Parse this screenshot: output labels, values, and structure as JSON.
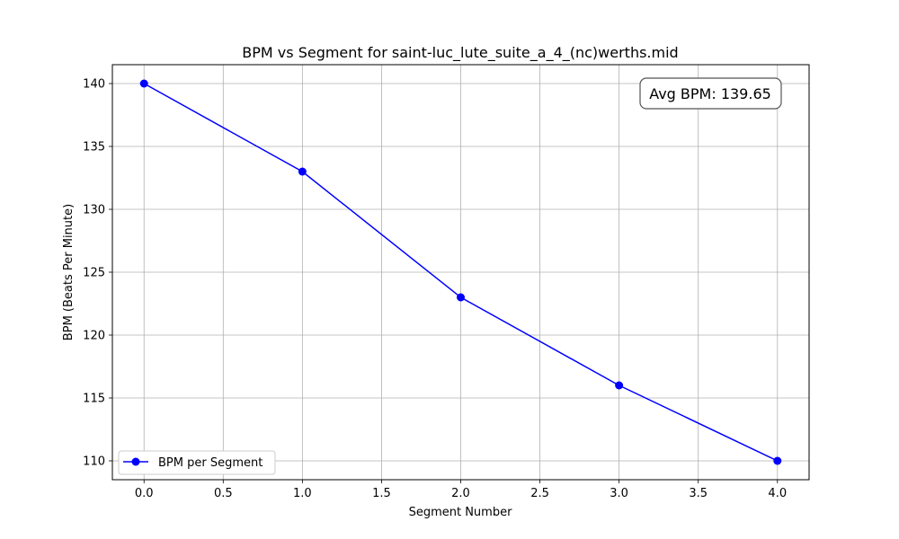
{
  "chart_data": {
    "type": "line",
    "title": "BPM vs Segment for saint-luc_lute_suite_a_4_(nc)werths.mid",
    "xlabel": "Segment Number",
    "ylabel": "BPM (Beats Per Minute)",
    "x": [
      0,
      1,
      2,
      3,
      4
    ],
    "series": [
      {
        "name": "BPM per Segment",
        "values": [
          140,
          133,
          123,
          116,
          110
        ],
        "color": "#0000ff",
        "marker": "circle"
      }
    ],
    "xlim": [
      -0.2,
      4.2
    ],
    "ylim": [
      108.5,
      141.5
    ],
    "xticks": [
      0.0,
      0.5,
      1.0,
      1.5,
      2.0,
      2.5,
      3.0,
      3.5,
      4.0
    ],
    "xtick_labels": [
      "0.0",
      "0.5",
      "1.0",
      "1.5",
      "2.0",
      "2.5",
      "3.0",
      "3.5",
      "4.0"
    ],
    "yticks": [
      110,
      115,
      120,
      125,
      130,
      135,
      140
    ],
    "ytick_labels": [
      "110",
      "115",
      "120",
      "125",
      "130",
      "135",
      "140"
    ],
    "grid": true,
    "legend_position": "lower-left",
    "annotation": "Avg BPM: 139.65"
  }
}
